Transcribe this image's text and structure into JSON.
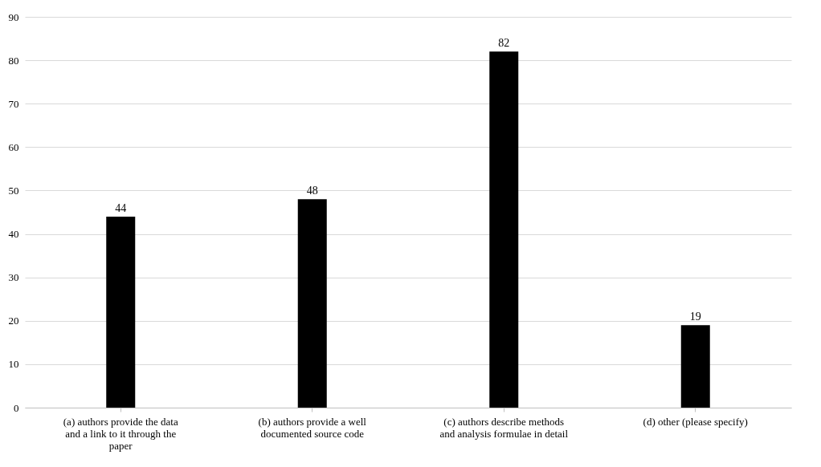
{
  "chart_data": {
    "type": "bar",
    "categories": [
      "(a) authors provide the data and a link to it through the paper",
      "(b) authors provide a well documented source code",
      "(c) authors describe methods and analysis formulae in detail",
      "(d) other (please specify)"
    ],
    "values": [
      44,
      48,
      82,
      19
    ],
    "color": "#000000",
    "ylim": [
      0,
      90
    ],
    "yticks": [
      0,
      10,
      20,
      30,
      40,
      50,
      60,
      70,
      80,
      90
    ],
    "grid": "y",
    "data_labels": true
  }
}
